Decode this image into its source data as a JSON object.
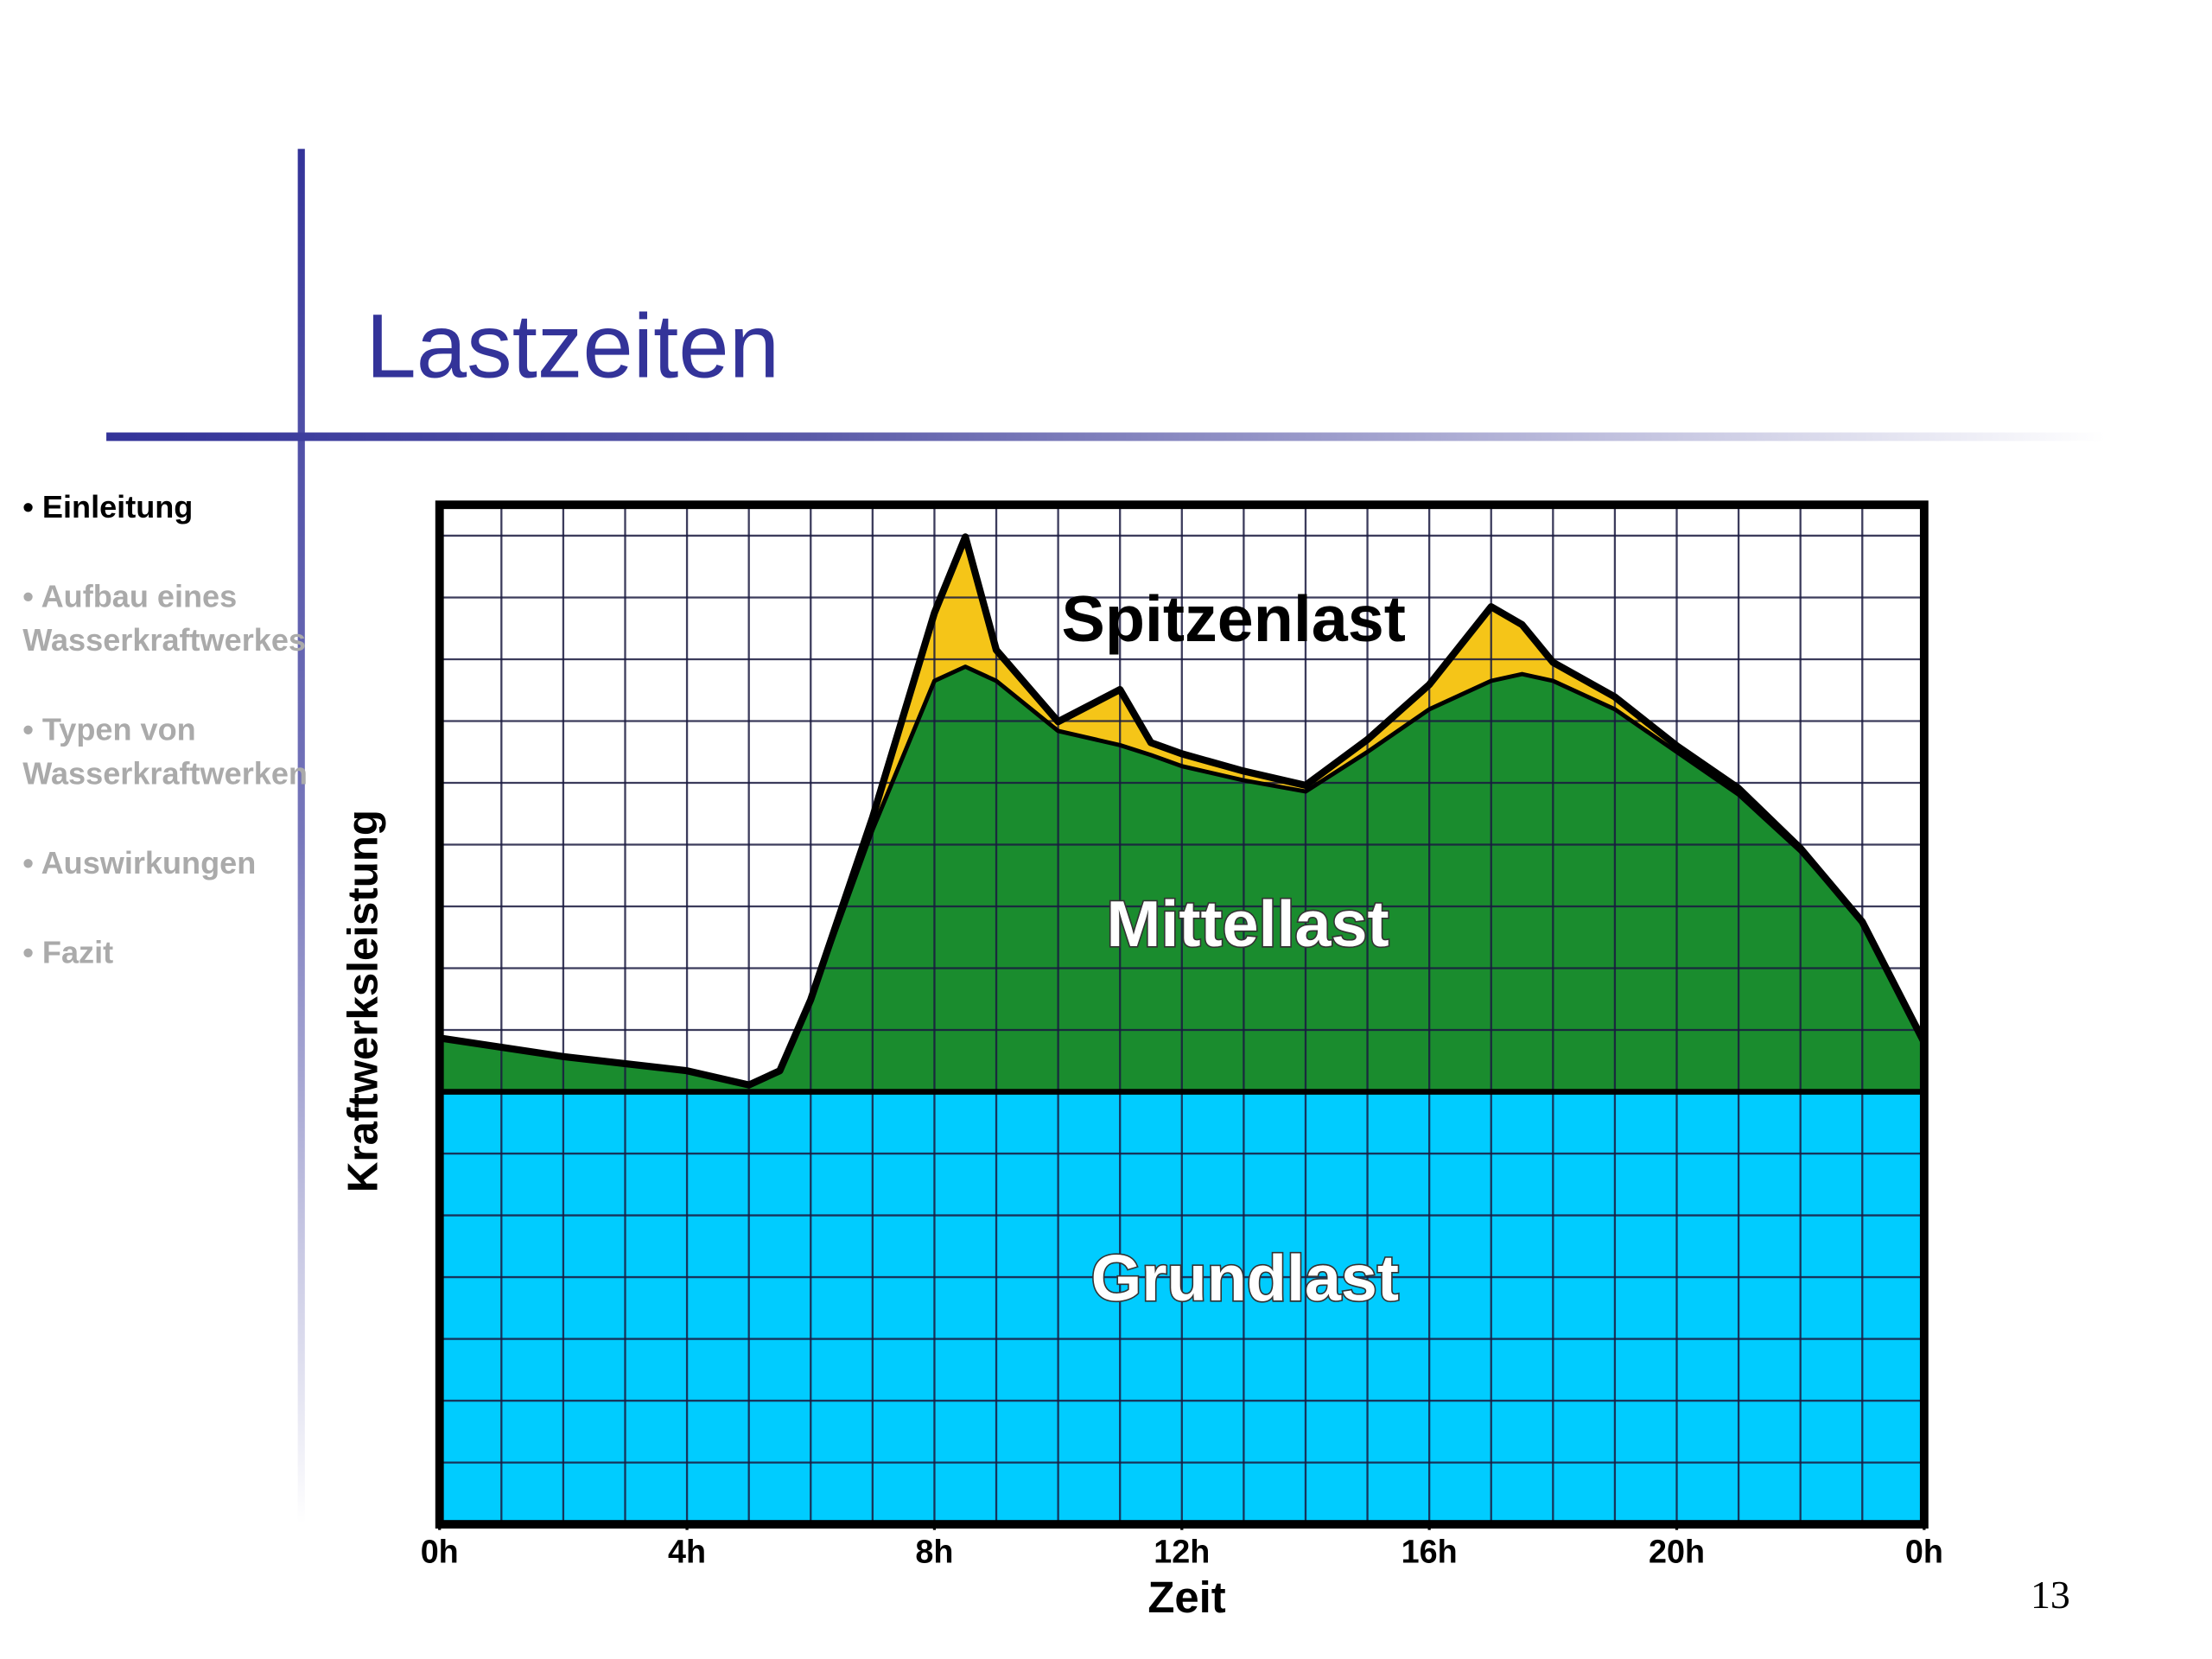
{
  "title": "Lastzeiten",
  "nav": [
    [
      "• Einleitung"
    ],
    [
      "•  Aufbau  eines",
      "Wasserkraftwerkes"
    ],
    [
      "• Typen von",
      "Wasserkraftwerken"
    ],
    [
      "• Auswirkungen"
    ],
    [
      "•   Fazit"
    ]
  ],
  "page_number": "13",
  "chart_data": {
    "type": "stacked-area",
    "x_label": "Zeit",
    "y_label": "Kraftwerksleistung",
    "x": [
      0,
      2,
      4,
      5,
      5.5,
      6,
      7,
      8,
      8.5,
      9,
      10,
      11,
      11.5,
      12,
      13,
      14,
      15,
      16,
      17,
      17.5,
      18,
      19,
      20,
      21,
      22,
      23,
      24
    ],
    "series": [
      {
        "name": "Grundlast",
        "color": "#00ccff",
        "values": [
          7,
          7,
          7,
          7,
          7,
          7,
          7,
          7,
          7,
          7,
          7,
          7,
          7,
          7,
          7,
          7,
          7,
          7,
          7,
          7,
          7,
          7,
          7,
          7,
          7,
          7,
          7
        ]
      },
      {
        "name": "Mittellast",
        "color": "#1a8c2e",
        "values": [
          0.87,
          0.57,
          0.34,
          0.11,
          0.34,
          1.49,
          4.24,
          6.65,
          6.88,
          6.65,
          5.84,
          5.61,
          5.45,
          5.27,
          5.04,
          4.86,
          5.5,
          6.19,
          6.65,
          6.76,
          6.65,
          6.19,
          5.5,
          4.81,
          3.89,
          2.75,
          0.8
        ]
      },
      {
        "name": "Spitzenlast",
        "color": "#f5c518",
        "values": [
          0,
          0,
          0,
          0,
          0,
          0,
          0.2,
          1.1,
          2.1,
          0.5,
          0.15,
          0.9,
          0.2,
          0.2,
          0.15,
          0.1,
          0.2,
          0.4,
          1.2,
          0.8,
          0.3,
          0.2,
          0.1,
          0.1,
          0.05,
          0,
          0
        ]
      }
    ],
    "xlim": [
      0,
      24
    ],
    "ylim": [
      0,
      16.5
    ],
    "xticks": [
      {
        "value": 0,
        "label": "0h"
      },
      {
        "value": 4,
        "label": "4h"
      },
      {
        "value": 8,
        "label": "8h"
      },
      {
        "value": 12,
        "label": "12h"
      },
      {
        "value": 16,
        "label": "16h"
      },
      {
        "value": 20,
        "label": "20h"
      },
      {
        "value": 24,
        "label": "0h"
      }
    ],
    "grid": true,
    "xgrid": [
      0,
      1,
      2,
      3,
      4,
      5,
      6,
      7,
      8,
      9,
      10,
      11,
      12,
      13,
      14,
      15,
      16,
      17,
      18,
      19,
      20,
      21,
      22,
      23,
      24
    ],
    "ygrid": [
      0,
      1,
      2,
      3,
      4,
      5,
      6,
      7,
      8,
      9,
      10,
      11,
      12,
      13,
      14,
      15,
      16
    ]
  }
}
